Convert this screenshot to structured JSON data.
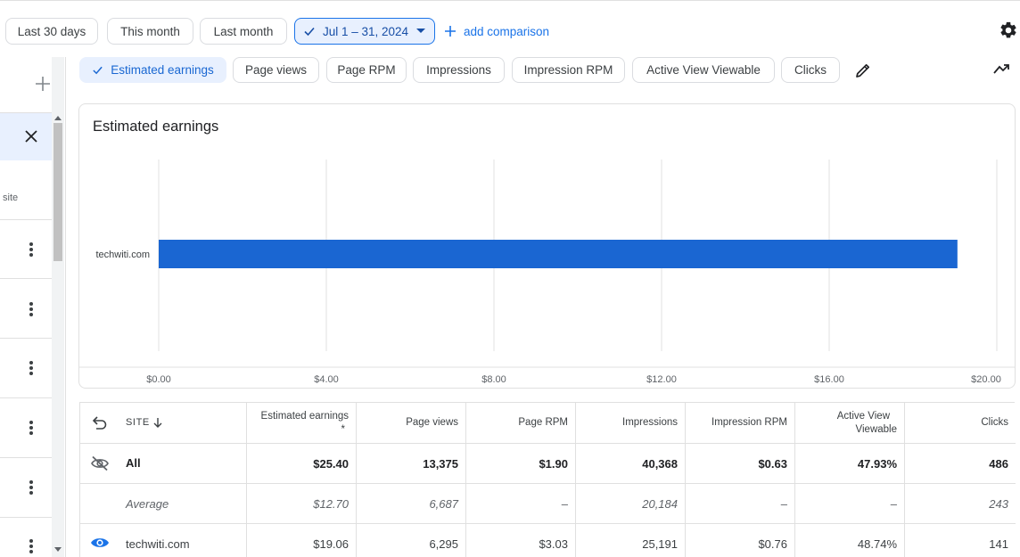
{
  "date_filters": {
    "last_30": "Last 30 days",
    "this_month": "This month",
    "last_month": "Last month",
    "selected_range": "Jul 1 – 31, 2024",
    "add_comparison": "add comparison"
  },
  "sidebar": {
    "site_label": "site"
  },
  "metrics": {
    "chips": [
      "Estimated earnings",
      "Page views",
      "Page RPM",
      "Impressions",
      "Impression RPM",
      "Active View Viewable",
      "Clicks"
    ]
  },
  "chart_data": {
    "type": "bar",
    "orientation": "horizontal",
    "title": "Estimated earnings",
    "categories": [
      "techwiti.com"
    ],
    "values": [
      19.06
    ],
    "xlim": [
      0,
      20
    ],
    "x_ticks": [
      "$0.00",
      "$4.00",
      "$8.00",
      "$12.00",
      "$16.00",
      "$20.00"
    ],
    "x_tick_values": [
      0,
      4,
      8,
      12,
      16,
      20
    ],
    "bar_color": "#1a66d2",
    "grid": true
  },
  "table": {
    "headers": {
      "site": "SITE",
      "estimated_earnings": "Estimated earnings",
      "asterisk": "*",
      "page_views": "Page views",
      "page_rpm": "Page RPM",
      "impressions": "Impressions",
      "impression_rpm": "Impression RPM",
      "active_view_line1": "Active View",
      "active_view_line2": "Viewable",
      "clicks": "Clicks"
    },
    "rows": [
      {
        "label": "All",
        "values": [
          "$25.40",
          "13,375",
          "$1.90",
          "40,368",
          "$0.63",
          "47.93%",
          "486"
        ]
      },
      {
        "label": "Average",
        "values": [
          "$12.70",
          "6,687",
          "–",
          "20,184",
          "–",
          "–",
          "243"
        ]
      },
      {
        "label": "techwiti.com",
        "values": [
          "$19.06",
          "6,295",
          "$3.03",
          "25,191",
          "$0.76",
          "48.74%",
          "141"
        ]
      }
    ]
  },
  "colors": {
    "accent": "#1a73e8",
    "selected_bg": "#e8f0fe",
    "bar": "#1a66d2"
  }
}
